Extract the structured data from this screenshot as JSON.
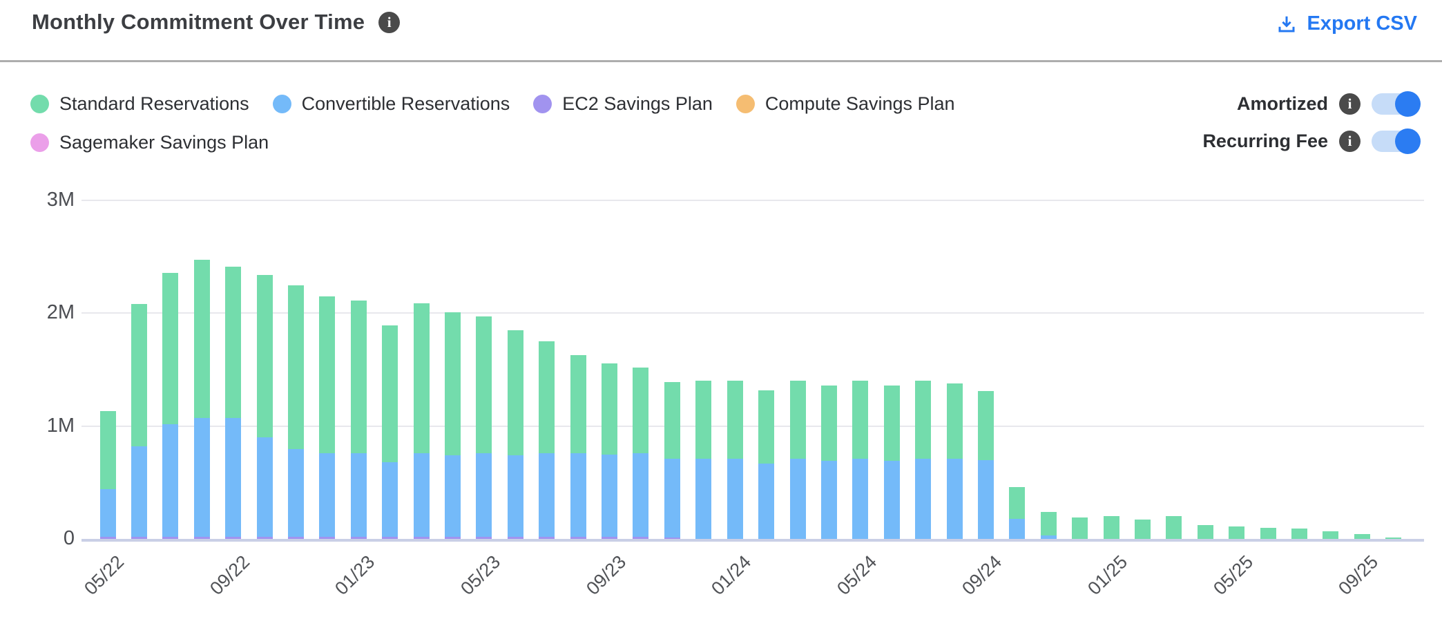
{
  "header": {
    "title": "Monthly Commitment Over Time",
    "title_info_icon": "info-icon",
    "export_label": "Export CSV",
    "export_icon": "download-icon"
  },
  "legend": {
    "items": [
      {
        "label": "Standard Reservations",
        "color": "#73dcac"
      },
      {
        "label": "Convertible Reservations",
        "color": "#74baf9"
      },
      {
        "label": "EC2 Savings Plan",
        "color": "#a193ef"
      },
      {
        "label": "Compute Savings Plan",
        "color": "#f5bd72"
      },
      {
        "label": "Sagemaker Savings Plan",
        "color": "#eb9fe9"
      }
    ]
  },
  "toggles": [
    {
      "label": "Amortized",
      "info_icon": "info-icon",
      "state": "on"
    },
    {
      "label": "Recurring Fee",
      "info_icon": "info-icon",
      "state": "on"
    }
  ],
  "colors": {
    "accent_blue": "#2478f2",
    "toggle_track": "#c6dcf8",
    "divider": "#adadad",
    "gridline": "#e8e8ed",
    "axis_line": "#c9cfe6",
    "text_dark": "#3c3e42",
    "text_gray": "#4b4d52"
  },
  "chart_data": {
    "type": "bar",
    "stacked": true,
    "title": "Monthly Commitment Over Time",
    "values_unit": "millions",
    "ylim": [
      0,
      3000000
    ],
    "grid": true,
    "legend_position": "top-left",
    "yticks": [
      {
        "label": "0",
        "v": 0
      },
      {
        "label": "1M",
        "v": 1
      },
      {
        "label": "2M",
        "v": 2
      },
      {
        "label": "3M",
        "v": 3
      }
    ],
    "xtick_every": 4,
    "xtick_labels": [
      "05/22",
      "09/22",
      "01/23",
      "05/23",
      "09/23",
      "01/24",
      "05/24",
      "09/24",
      "01/25",
      "05/25",
      "09/25"
    ],
    "categories": [
      "05/22",
      "06/22",
      "07/22",
      "08/22",
      "09/22",
      "10/22",
      "11/22",
      "12/22",
      "01/23",
      "02/23",
      "03/23",
      "04/23",
      "05/23",
      "06/23",
      "07/23",
      "08/23",
      "09/23",
      "10/23",
      "11/23",
      "12/23",
      "01/24",
      "02/24",
      "03/24",
      "04/24",
      "05/24",
      "06/24",
      "07/24",
      "08/24",
      "09/24",
      "10/24",
      "11/24",
      "12/24",
      "01/25",
      "02/25",
      "03/25",
      "04/25",
      "05/25",
      "06/25",
      "07/25",
      "08/25",
      "09/25",
      "10/25"
    ],
    "stack_order_bottom_to_top": [
      "EC2 Savings Plan",
      "Convertible Reservations",
      "Standard Reservations",
      "Compute Savings Plan",
      "Sagemaker Savings Plan"
    ],
    "series": [
      {
        "name": "Standard Reservations",
        "color": "#73dcac",
        "values": [
          0.69,
          1.26,
          1.34,
          1.4,
          1.34,
          1.44,
          1.45,
          1.39,
          1.35,
          1.21,
          1.33,
          1.27,
          1.21,
          1.11,
          0.99,
          0.87,
          0.81,
          0.76,
          0.68,
          0.69,
          0.69,
          0.65,
          0.69,
          0.67,
          0.69,
          0.67,
          0.69,
          0.67,
          0.61,
          0.28,
          0.21,
          0.19,
          0.2,
          0.17,
          0.2,
          0.12,
          0.11,
          0.1,
          0.09,
          0.07,
          0.04,
          0.015
        ]
      },
      {
        "name": "Convertible Reservations",
        "color": "#74baf9",
        "values": [
          0.42,
          0.8,
          1.0,
          1.05,
          1.05,
          0.88,
          0.78,
          0.74,
          0.74,
          0.66,
          0.74,
          0.72,
          0.74,
          0.72,
          0.74,
          0.74,
          0.73,
          0.74,
          0.7,
          0.71,
          0.71,
          0.67,
          0.71,
          0.69,
          0.71,
          0.69,
          0.71,
          0.71,
          0.7,
          0.18,
          0.03,
          0,
          0,
          0,
          0,
          0,
          0,
          0,
          0,
          0,
          0,
          0
        ]
      },
      {
        "name": "EC2 Savings Plan",
        "color": "#a193ef",
        "values": [
          0.02,
          0.02,
          0.02,
          0.02,
          0.02,
          0.02,
          0.02,
          0.02,
          0.02,
          0.02,
          0.02,
          0.02,
          0.02,
          0.02,
          0.02,
          0.02,
          0.02,
          0.02,
          0.01,
          0,
          0,
          0,
          0,
          0,
          0,
          0,
          0,
          0,
          0,
          0,
          0,
          0,
          0,
          0,
          0,
          0,
          0,
          0,
          0,
          0,
          0,
          0
        ]
      },
      {
        "name": "Compute Savings Plan",
        "color": "#f5bd72",
        "values": [
          0,
          0,
          0,
          0,
          0,
          0,
          0,
          0,
          0,
          0,
          0,
          0,
          0,
          0,
          0,
          0,
          0,
          0,
          0,
          0,
          0,
          0,
          0,
          0,
          0,
          0,
          0,
          0,
          0,
          0,
          0,
          0,
          0,
          0,
          0,
          0,
          0,
          0,
          0,
          0,
          0,
          0
        ]
      },
      {
        "name": "Sagemaker Savings Plan",
        "color": "#eb9fe9",
        "values": [
          0,
          0,
          0,
          0,
          0,
          0,
          0,
          0,
          0,
          0,
          0,
          0,
          0,
          0,
          0,
          0,
          0,
          0,
          0,
          0,
          0,
          0,
          0,
          0,
          0,
          0,
          0,
          0,
          0,
          0,
          0,
          0,
          0,
          0,
          0,
          0,
          0,
          0,
          0,
          0,
          0,
          0
        ]
      }
    ]
  }
}
